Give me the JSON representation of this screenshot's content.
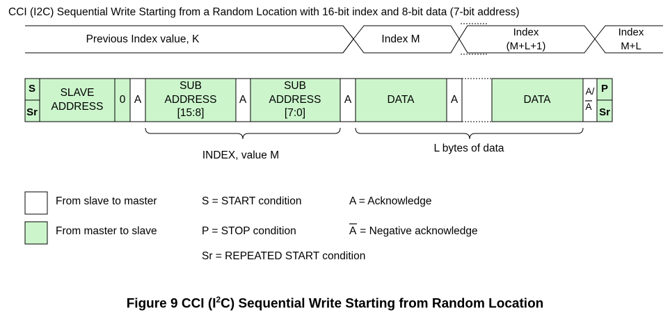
{
  "header": {
    "title": "CCI (I2C) Sequential Write Starting from a Random Location with 16-bit index and 8-bit data (7-bit address)"
  },
  "timeline": {
    "prev_index": "Previous Index value, K",
    "index_m": "Index M",
    "index_mpl1_line1": "Index",
    "index_mpl1_line2": "(M+L+1)",
    "index_mpl_line1": "Index",
    "index_mpl_line2": "M+L"
  },
  "frame": {
    "s": "S",
    "sr": "Sr",
    "slave_line1": "SLAVE",
    "slave_line2": "ADDRESS",
    "rw": "0",
    "ack": "A",
    "sub1_line1": "SUB",
    "sub1_line2": "ADDRESS",
    "sub1_line3": "[15:8]",
    "sub2_line1": "SUB",
    "sub2_line2": "ADDRESS",
    "sub2_line3": "[7:0]",
    "data": "DATA",
    "final_ack_a": "A/",
    "final_ack_nak": "A",
    "p": "P",
    "sr_end": "Sr"
  },
  "braces": {
    "index_label": "INDEX, value M",
    "data_label": "L bytes of data"
  },
  "legend": {
    "slave_to_master": "From slave to master",
    "master_to_slave": "From master to slave",
    "start": "S = START condition",
    "stop": "P = STOP condition",
    "repeated_start": "Sr = REPEATED START condition",
    "acknowledge": "A = Acknowledge",
    "nak_prefix": "A",
    "nak_text": " = Negative acknowledge"
  },
  "caption": {
    "prefix": "Figure 9 CCI (I",
    "sup": "2",
    "suffix": "C) Sequential Write Starting from Random Location"
  },
  "colors": {
    "master_fill": "#ccf5cc",
    "slave_fill": "#ffffff",
    "stroke": "#000000"
  }
}
